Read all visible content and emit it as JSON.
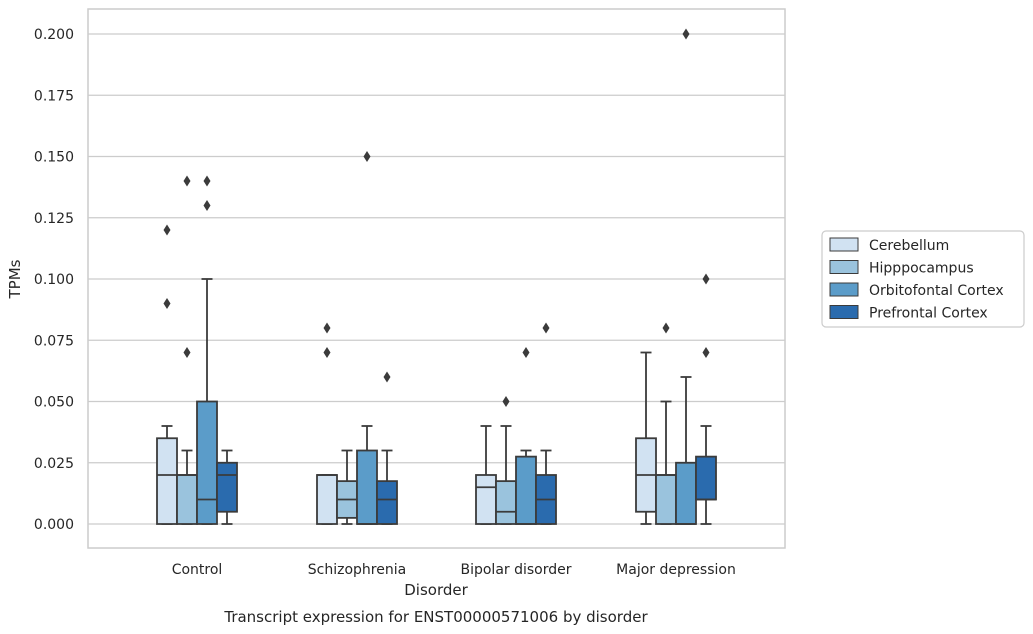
{
  "chart_data": {
    "type": "boxplot",
    "title": "",
    "caption": "Transcript expression for ENST00000571006 by disorder",
    "xlabel": "Disorder",
    "ylabel": "TPMs",
    "ylim": [
      -0.01,
      0.21
    ],
    "yticks": [
      0.0,
      0.025,
      0.05,
      0.075,
      0.1,
      0.125,
      0.15,
      0.175,
      0.2
    ],
    "ytick_labels": [
      "0.000",
      "0.025",
      "0.050",
      "0.075",
      "0.100",
      "0.125",
      "0.150",
      "0.175",
      "0.200"
    ],
    "grid": "horizontal",
    "legend_position": "outside-right",
    "categories": [
      "Control",
      "Schizophrenia",
      "Bipolar disorder",
      "Major depression"
    ],
    "series": [
      {
        "name": "Cerebellum",
        "color": "#d1e2f2",
        "boxes": [
          {
            "whisker_low": 0.0,
            "q1": 0.0,
            "median": 0.02,
            "q3": 0.035,
            "whisker_high": 0.04,
            "outliers": [
              0.09,
              0.12
            ]
          },
          {
            "whisker_low": 0.0,
            "q1": 0.0,
            "median": 0.02,
            "q3": 0.02,
            "whisker_high": 0.02,
            "outliers": [
              0.07,
              0.08
            ]
          },
          {
            "whisker_low": 0.0,
            "q1": 0.0,
            "median": 0.015,
            "q3": 0.02,
            "whisker_high": 0.04,
            "outliers": []
          },
          {
            "whisker_low": 0.0,
            "q1": 0.005,
            "median": 0.02,
            "q3": 0.035,
            "whisker_high": 0.07,
            "outliers": []
          }
        ]
      },
      {
        "name": "Hipppocampus",
        "color": "#9ac3dd",
        "boxes": [
          {
            "whisker_low": 0.0,
            "q1": 0.0,
            "median": 0.02,
            "q3": 0.02,
            "whisker_high": 0.03,
            "outliers": [
              0.07,
              0.14
            ]
          },
          {
            "whisker_low": 0.0,
            "q1": 0.0025,
            "median": 0.01,
            "q3": 0.0175,
            "whisker_high": 0.03,
            "outliers": []
          },
          {
            "whisker_low": 0.0,
            "q1": 0.0,
            "median": 0.005,
            "q3": 0.0175,
            "whisker_high": 0.04,
            "outliers": [
              0.05
            ]
          },
          {
            "whisker_low": 0.0,
            "q1": 0.0,
            "median": 0.02,
            "q3": 0.02,
            "whisker_high": 0.05,
            "outliers": [
              0.08
            ]
          }
        ]
      },
      {
        "name": "Orbitofontal Cortex",
        "color": "#5b9cc9",
        "boxes": [
          {
            "whisker_low": 0.0,
            "q1": 0.0,
            "median": 0.01,
            "q3": 0.05,
            "whisker_high": 0.1,
            "outliers": [
              0.13,
              0.14
            ]
          },
          {
            "whisker_low": 0.0,
            "q1": 0.0,
            "median": 0.0,
            "q3": 0.03,
            "whisker_high": 0.04,
            "outliers": [
              0.15
            ]
          },
          {
            "whisker_low": 0.0,
            "q1": 0.0,
            "median": 0.0,
            "q3": 0.0275,
            "whisker_high": 0.03,
            "outliers": [
              0.07
            ]
          },
          {
            "whisker_low": 0.0,
            "q1": 0.0,
            "median": 0.0,
            "q3": 0.025,
            "whisker_high": 0.06,
            "outliers": [
              0.2
            ]
          }
        ]
      },
      {
        "name": "Prefrontal Cortex",
        "color": "#2a6bae",
        "boxes": [
          {
            "whisker_low": 0.0,
            "q1": 0.005,
            "median": 0.02,
            "q3": 0.025,
            "whisker_high": 0.03,
            "outliers": []
          },
          {
            "whisker_low": 0.0,
            "q1": 0.0,
            "median": 0.01,
            "q3": 0.0175,
            "whisker_high": 0.03,
            "outliers": [
              0.06
            ]
          },
          {
            "whisker_low": 0.0,
            "q1": 0.0,
            "median": 0.01,
            "q3": 0.02,
            "whisker_high": 0.03,
            "outliers": [
              0.08
            ]
          },
          {
            "whisker_low": 0.0,
            "q1": 0.01,
            "median": 0.01,
            "q3": 0.0275,
            "whisker_high": 0.04,
            "outliers": [
              0.07,
              0.1
            ]
          }
        ]
      }
    ]
  }
}
